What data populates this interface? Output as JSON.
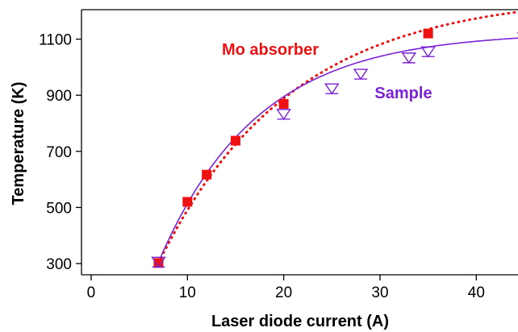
{
  "chart_data": {
    "type": "line",
    "xlabel": "Laser diode current (A)",
    "ylabel": "Temperature (K)",
    "xlim": [
      -1,
      45
    ],
    "ylim": [
      260,
      1205
    ],
    "xticks": [
      0,
      10,
      20,
      30,
      40
    ],
    "yticks": [
      300,
      500,
      700,
      900,
      1100
    ],
    "series": [
      {
        "name": "Mo absorber",
        "color": "#ee1111",
        "marker": "square",
        "line_style": "dotted",
        "x": [
          7,
          10,
          12,
          15,
          20,
          35,
          45
        ],
        "y": [
          302,
          520,
          617,
          738,
          869,
          1120,
          1200
        ]
      },
      {
        "name": "Sample",
        "color": "#7a22d6",
        "marker": "triangle-down-bar",
        "line_style": "solid",
        "x": [
          7,
          20,
          25,
          28,
          33,
          35,
          45
        ],
        "y": [
          305,
          832,
          923,
          975,
          1033,
          1055,
          1105
        ]
      }
    ],
    "grid": false,
    "legend": "inline labels"
  }
}
